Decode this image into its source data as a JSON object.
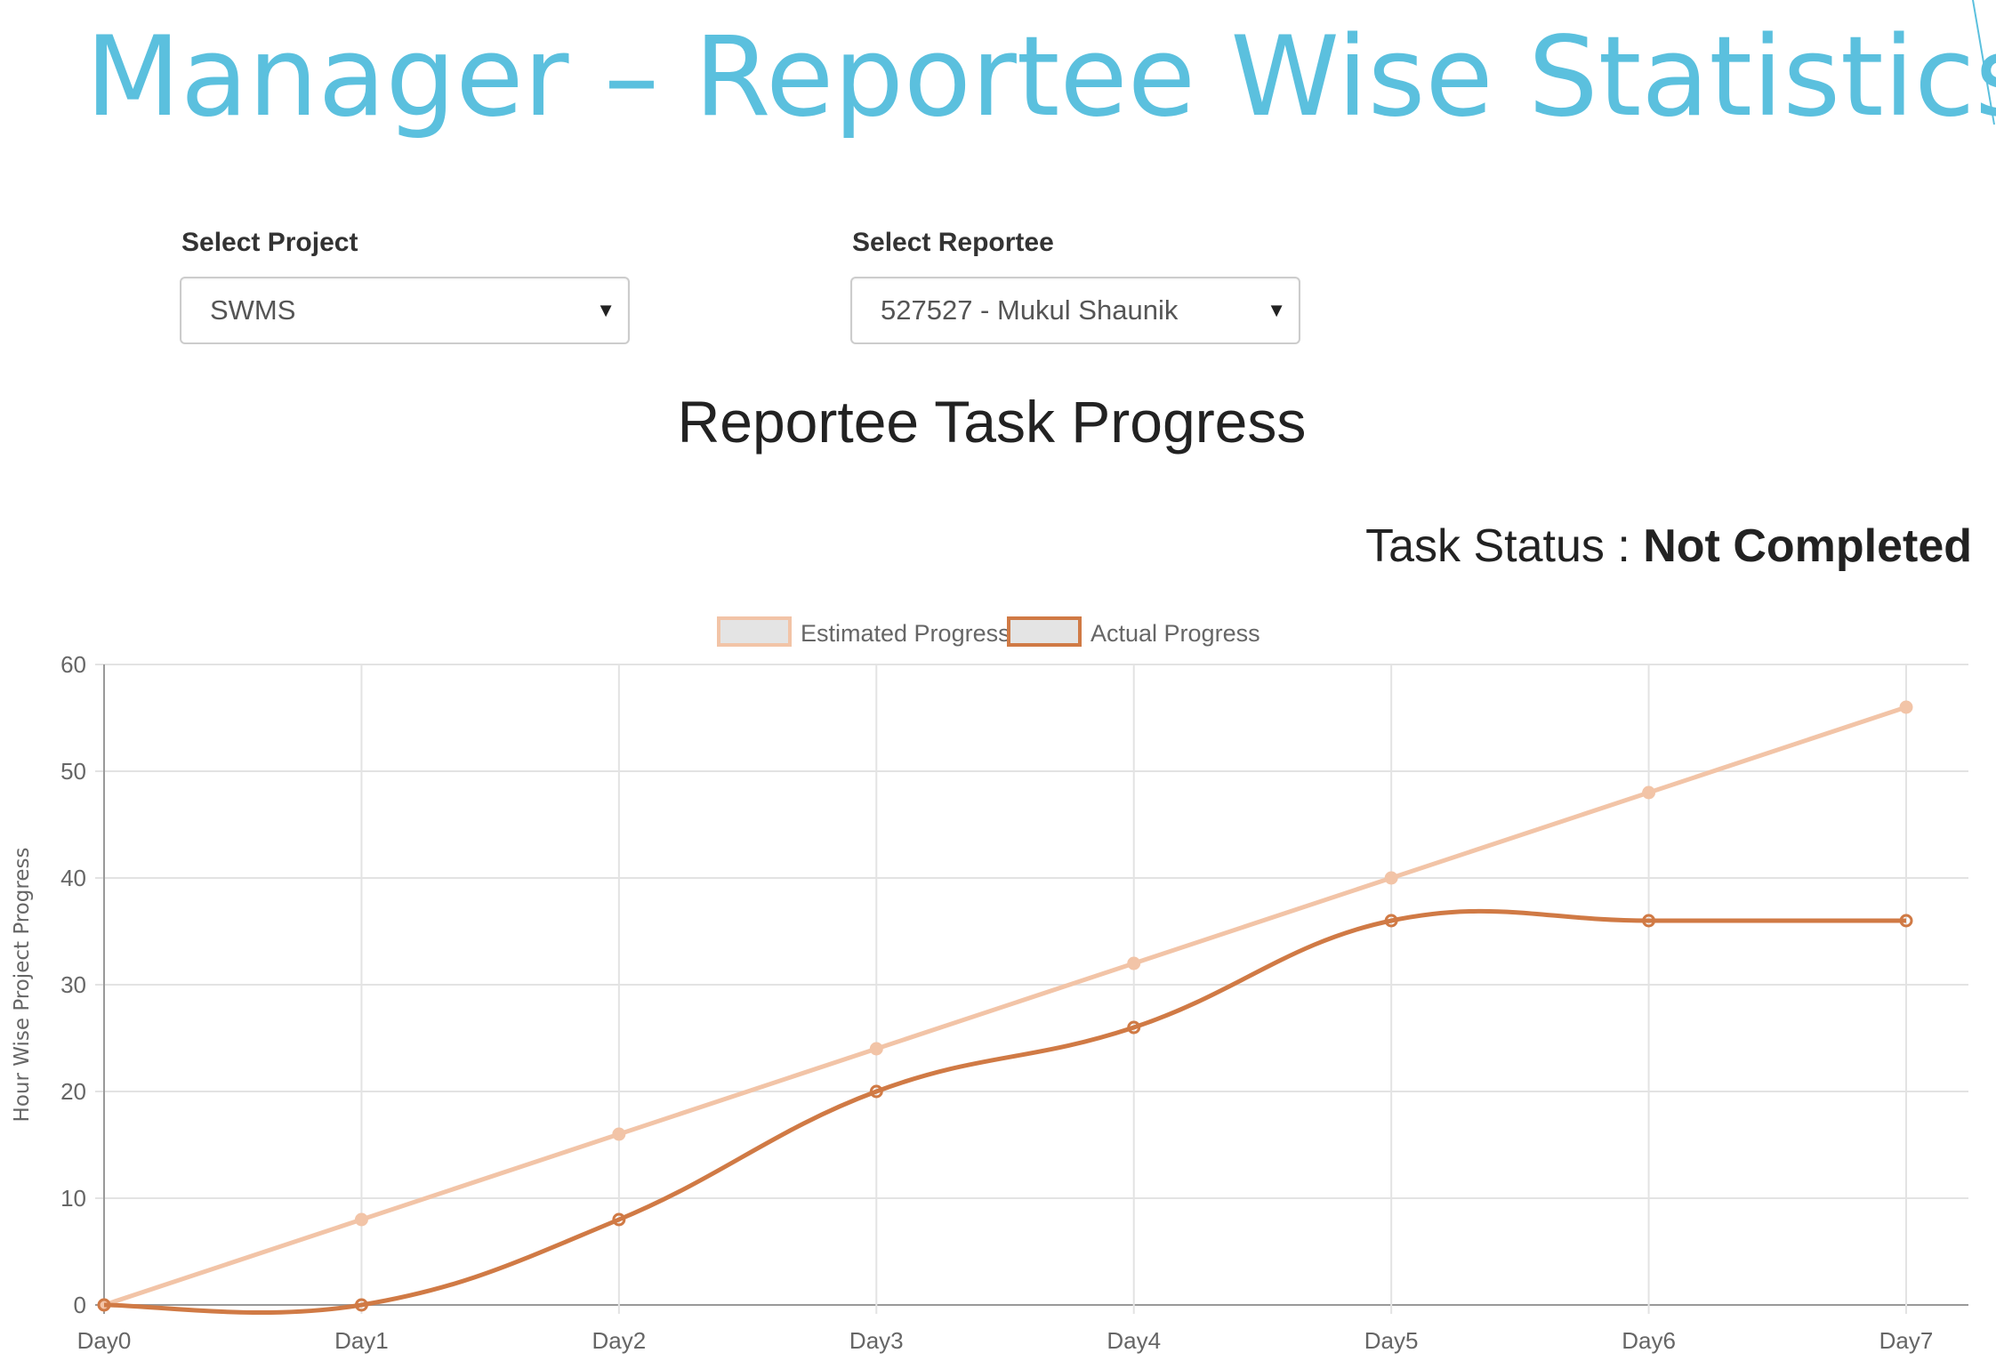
{
  "page": {
    "title": "Manager – Reportee Wise Statistics"
  },
  "filters": {
    "project": {
      "label": "Select Project",
      "value": "SWMS"
    },
    "reportee": {
      "label": "Select Reportee",
      "value": "527527 - Mukul Shaunik"
    }
  },
  "task_status": {
    "label": "Task Status : ",
    "value": "Not Completed"
  },
  "icons": {
    "dropdown": "caret-down-icon"
  },
  "colors": {
    "title": "#5bc0de",
    "estimated": "#f2c4a7",
    "actual": "#d07a45",
    "legend_fill": "#e4e4e4"
  },
  "chart_data": {
    "type": "line",
    "title": "Reportee Task Progress",
    "xlabel": "",
    "ylabel": "Hour Wise Project Progress",
    "categories": [
      "Day0",
      "Day1",
      "Day2",
      "Day3",
      "Day4",
      "Day5",
      "Day6",
      "Day7"
    ],
    "series": [
      {
        "name": "Estimated Progress",
        "values": [
          0,
          8,
          16,
          24,
          32,
          40,
          48,
          56
        ]
      },
      {
        "name": "Actual Progress",
        "values": [
          0,
          0,
          8,
          20,
          26,
          36,
          36,
          36
        ]
      }
    ],
    "ylim": [
      0,
      60
    ],
    "yticks": [
      0,
      10,
      20,
      30,
      40,
      50,
      60
    ],
    "grid": true,
    "legend_position": "top-center"
  }
}
